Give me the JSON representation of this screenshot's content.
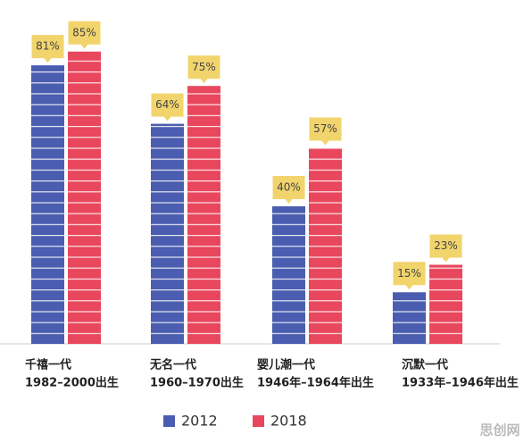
{
  "chart_data": {
    "type": "bar",
    "categories": [
      "千禧一代",
      "无名一代",
      "婴儿潮一代",
      "沉默一代"
    ],
    "category_years": [
      "1982–2000出生",
      "1960–1970出生",
      "1946年–1964年出生",
      "1933年–1946年出生"
    ],
    "series": [
      {
        "name": "2012",
        "color": "#4a5db0",
        "values": [
          81,
          64,
          40,
          15
        ],
        "value_labels": [
          "81%",
          "64%",
          "40%",
          "15%"
        ]
      },
      {
        "name": "2018",
        "color": "#e8475e",
        "values": [
          85,
          75,
          57,
          23
        ],
        "value_labels": [
          "85%",
          "75%",
          "57%",
          "23%"
        ]
      }
    ],
    "ylim": [
      0,
      100
    ],
    "watermark": "思创网"
  }
}
